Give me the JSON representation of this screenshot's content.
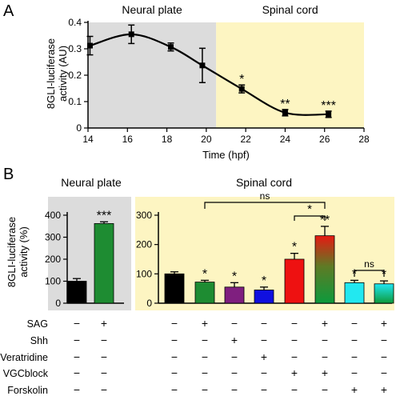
{
  "chart_data": [
    {
      "panel": "A",
      "type": "line",
      "regions": [
        {
          "label": "Neural plate",
          "x_from": 14,
          "x_to": 20.5,
          "color": "#dcdcdc"
        },
        {
          "label": "Spinal cord",
          "x_from": 20.5,
          "x_to": 28,
          "color": "#fdf5c2"
        }
      ],
      "ylabel": "8GLI-luciferase\nactivity (AU)",
      "xlabel": "Time (hpf)",
      "xlim": [
        14,
        28
      ],
      "ylim": [
        0,
        0.4
      ],
      "x_ticks": [
        14,
        16,
        18,
        20,
        22,
        24,
        26,
        28
      ],
      "y_ticks": [
        0,
        0.1,
        0.2,
        0.3,
        0.4
      ],
      "y_tick_labels": [
        "0",
        "0.1",
        "0.2",
        "0.3",
        "0.4"
      ],
      "points": [
        {
          "x": 14.1,
          "y": 0.312,
          "err": 0.035,
          "sig": ""
        },
        {
          "x": 16.2,
          "y": 0.355,
          "err": 0.035,
          "sig": ""
        },
        {
          "x": 18.2,
          "y": 0.307,
          "err": 0.015,
          "sig": ""
        },
        {
          "x": 19.8,
          "y": 0.237,
          "err": 0.065,
          "sig": ""
        },
        {
          "x": 21.8,
          "y": 0.148,
          "err": 0.015,
          "sig": "*"
        },
        {
          "x": 24.0,
          "y": 0.058,
          "err": 0.012,
          "sig": "**"
        },
        {
          "x": 26.2,
          "y": 0.052,
          "err": 0.012,
          "sig": "***"
        }
      ]
    },
    {
      "panel": "B",
      "type": "bar",
      "ylabel": "8GLI-luciferase\nactivity (%)",
      "subpanels": [
        {
          "title": "Neural plate",
          "background": "#dcdcdc",
          "ylim": [
            0,
            400
          ],
          "y_ticks": [
            0,
            100,
            200,
            300,
            400
          ],
          "bars": [
            {
              "value": 100,
              "err": 12,
              "color": "#000000",
              "sig": ""
            },
            {
              "value": 362,
              "err": 8,
              "color": "#1e8c32",
              "sig": "***"
            }
          ]
        },
        {
          "title": "Spinal cord",
          "background": "#fdf5c2",
          "ylim": [
            0,
            300
          ],
          "y_ticks": [
            0,
            100,
            200,
            300
          ],
          "bars": [
            {
              "value": 100,
              "err": 7,
              "color": "#000000",
              "sig": ""
            },
            {
              "value": 72,
              "err": 6,
              "color": "#1e8c32",
              "sig": "*"
            },
            {
              "value": 55,
              "err": 15,
              "color": "#7f1f7f",
              "sig": "*"
            },
            {
              "value": 45,
              "err": 10,
              "color": "#1010e0",
              "sig": "*"
            },
            {
              "value": 150,
              "err": 20,
              "color": "#ee1111",
              "sig": "*"
            },
            {
              "value": 230,
              "err": 32,
              "color": "gradient",
              "sig": "**"
            },
            {
              "value": 70,
              "err": 8,
              "color": "#22e8f0",
              "sig": "*"
            },
            {
              "value": 66,
              "err": 10,
              "color": "gradient2",
              "sig": "*"
            }
          ],
          "comparisons": [
            {
              "from": 1,
              "to": 5,
              "label": "ns"
            },
            {
              "from": 4,
              "to": 5,
              "label": "*"
            },
            {
              "from": 6,
              "to": 7,
              "label": "ns"
            }
          ]
        }
      ],
      "treatments": [
        {
          "name": "SAG",
          "marks": [
            "−",
            "+",
            "−",
            "+",
            "−",
            "−",
            "−",
            "+",
            "−",
            "+"
          ]
        },
        {
          "name": "Shh",
          "marks": [
            "−",
            "−",
            "−",
            "−",
            "+",
            "−",
            "−",
            "−",
            "−",
            "−"
          ]
        },
        {
          "name": "Veratridine",
          "marks": [
            "−",
            "−",
            "−",
            "−",
            "−",
            "+",
            "−",
            "−",
            "−",
            "−"
          ]
        },
        {
          "name": "VGCblock",
          "marks": [
            "−",
            "−",
            "−",
            "−",
            "−",
            "−",
            "+",
            "+",
            "−",
            "−"
          ]
        },
        {
          "name": "Forskolin",
          "marks": [
            "−",
            "−",
            "−",
            "−",
            "−",
            "−",
            "−",
            "−",
            "+",
            "+"
          ]
        }
      ]
    }
  ],
  "labels": {
    "panel_a": "A",
    "panel_b": "B"
  }
}
